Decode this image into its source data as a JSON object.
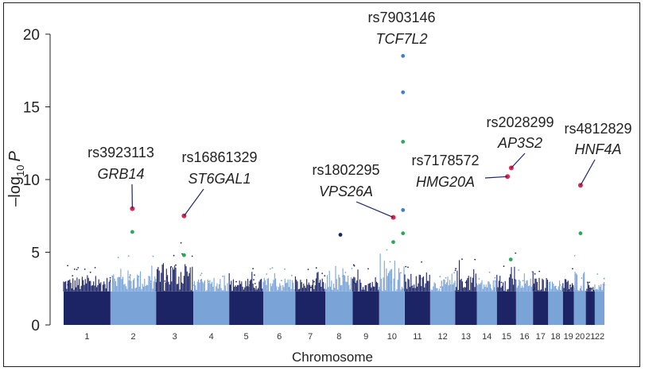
{
  "chart_data": {
    "type": "scatter",
    "subtype": "manhattan",
    "xlabel": "Chromosome",
    "ylabel_prefix": "–log",
    "ylabel_sub": "10",
    "ylabel_var": "P",
    "ylim": [
      0,
      20
    ],
    "yticks": [
      0,
      5,
      10,
      15,
      20
    ],
    "chromosomes": [
      {
        "label": "1",
        "size": 249,
        "peak": 3.9
      },
      {
        "label": "2",
        "size": 243,
        "peak": 4.6
      },
      {
        "label": "3",
        "size": 198,
        "peak": 5.6
      },
      {
        "label": "4",
        "size": 191,
        "peak": 3.6
      },
      {
        "label": "5",
        "size": 181,
        "peak": 3.7
      },
      {
        "label": "6",
        "size": 171,
        "peak": 3.8
      },
      {
        "label": "7",
        "size": 159,
        "peak": 3.7
      },
      {
        "label": "8",
        "size": 146,
        "peak": 4.2
      },
      {
        "label": "9",
        "size": 141,
        "peak": 4.0
      },
      {
        "label": "10",
        "size": 136,
        "peak": 5.2
      },
      {
        "label": "11",
        "size": 135,
        "peak": 4.2
      },
      {
        "label": "12",
        "size": 133,
        "peak": 3.6
      },
      {
        "label": "13",
        "size": 115,
        "peak": 4.6
      },
      {
        "label": "14",
        "size": 107,
        "peak": 3.6
      },
      {
        "label": "15",
        "size": 102,
        "peak": 4.8
      },
      {
        "label": "16",
        "size": 90,
        "peak": 3.7
      },
      {
        "label": "17",
        "size": 81,
        "peak": 3.8
      },
      {
        "label": "18",
        "size": 78,
        "peak": 3.4
      },
      {
        "label": "19",
        "size": 59,
        "peak": 3.7
      },
      {
        "label": "20",
        "size": 63,
        "peak": 4.6
      },
      {
        "label": "21",
        "size": 48,
        "peak": 3.3
      },
      {
        "label": "22",
        "size": 51,
        "peak": 3.2
      }
    ],
    "colors": {
      "dark": "#1c2466",
      "light": "#7aa3d8",
      "highlight_red": "#e0274f",
      "highlight_green": "#2ca85a",
      "highlight_blue": "#3f7fcf"
    },
    "highlight_points": [
      {
        "chrom": "2",
        "pos": 0.48,
        "y": 8.0,
        "color": "red"
      },
      {
        "chrom": "2",
        "pos": 0.48,
        "y": 6.4,
        "color": "green"
      },
      {
        "chrom": "3",
        "pos": 0.75,
        "y": 7.5,
        "color": "red"
      },
      {
        "chrom": "3",
        "pos": 0.75,
        "y": 4.8,
        "color": "green"
      },
      {
        "chrom": "8",
        "pos": 0.55,
        "y": 6.2,
        "color": "dark"
      },
      {
        "chrom": "10",
        "pos": 0.55,
        "y": 7.4,
        "color": "red"
      },
      {
        "chrom": "10",
        "pos": 0.55,
        "y": 5.7,
        "color": "green"
      },
      {
        "chrom": "10",
        "pos": 0.93,
        "y": 18.5,
        "color": "blue"
      },
      {
        "chrom": "10",
        "pos": 0.93,
        "y": 16.0,
        "color": "blue"
      },
      {
        "chrom": "10",
        "pos": 0.93,
        "y": 12.6,
        "color": "green"
      },
      {
        "chrom": "10",
        "pos": 0.93,
        "y": 7.9,
        "color": "blue"
      },
      {
        "chrom": "10",
        "pos": 0.93,
        "y": 6.3,
        "color": "green"
      },
      {
        "chrom": "15",
        "pos": 0.55,
        "y": 10.2,
        "color": "red"
      },
      {
        "chrom": "15",
        "pos": 0.75,
        "y": 10.8,
        "color": "red"
      },
      {
        "chrom": "15",
        "pos": 0.72,
        "y": 4.5,
        "color": "green"
      },
      {
        "chrom": "20",
        "pos": 0.55,
        "y": 9.6,
        "color": "red"
      },
      {
        "chrom": "20",
        "pos": 0.55,
        "y": 6.3,
        "color": "green"
      }
    ],
    "annotations": [
      {
        "snp": "rs3923113",
        "gene": "GRB14"
      },
      {
        "snp": "rs16861329",
        "gene": "ST6GAL1"
      },
      {
        "snp": "rs1802295",
        "gene": "VPS26A"
      },
      {
        "snp": "rs7903146",
        "gene": "TCF7L2"
      },
      {
        "snp": "rs7178572",
        "gene": "HMG20A"
      },
      {
        "snp": "rs2028299",
        "gene": "AP3S2"
      },
      {
        "snp": "rs4812829",
        "gene": "HNF4A"
      }
    ]
  }
}
